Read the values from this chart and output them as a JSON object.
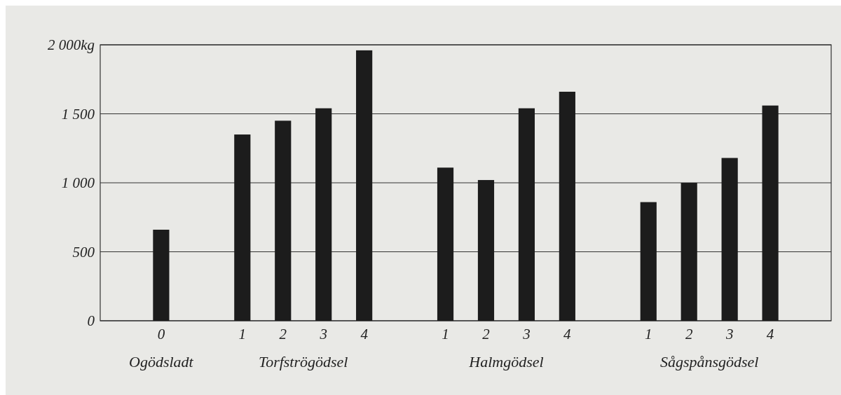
{
  "chart_data": {
    "type": "bar",
    "categories": [
      "0",
      null,
      "1",
      "2",
      "3",
      "4",
      null,
      "1",
      "2",
      "3",
      "4",
      null,
      "1",
      "2",
      "3",
      "4"
    ],
    "values": [
      660,
      null,
      1350,
      1450,
      1540,
      1960,
      null,
      1110,
      1020,
      1540,
      1660,
      null,
      860,
      1000,
      1180,
      1560
    ],
    "color": "#1c1c1c",
    "ylim": [
      0,
      2000
    ],
    "yticks": [
      0,
      500,
      {
        "value": 1000,
        "label": "1 000"
      },
      {
        "value": 1500,
        "label": "1 500"
      },
      {
        "value": 2000,
        "label": "2 000kg"
      }
    ],
    "grid": "y",
    "annotations": [
      "Ogödsladt",
      "Torfströgödsel",
      "Halmgödsel",
      "Sågspånsgödsel"
    ]
  }
}
